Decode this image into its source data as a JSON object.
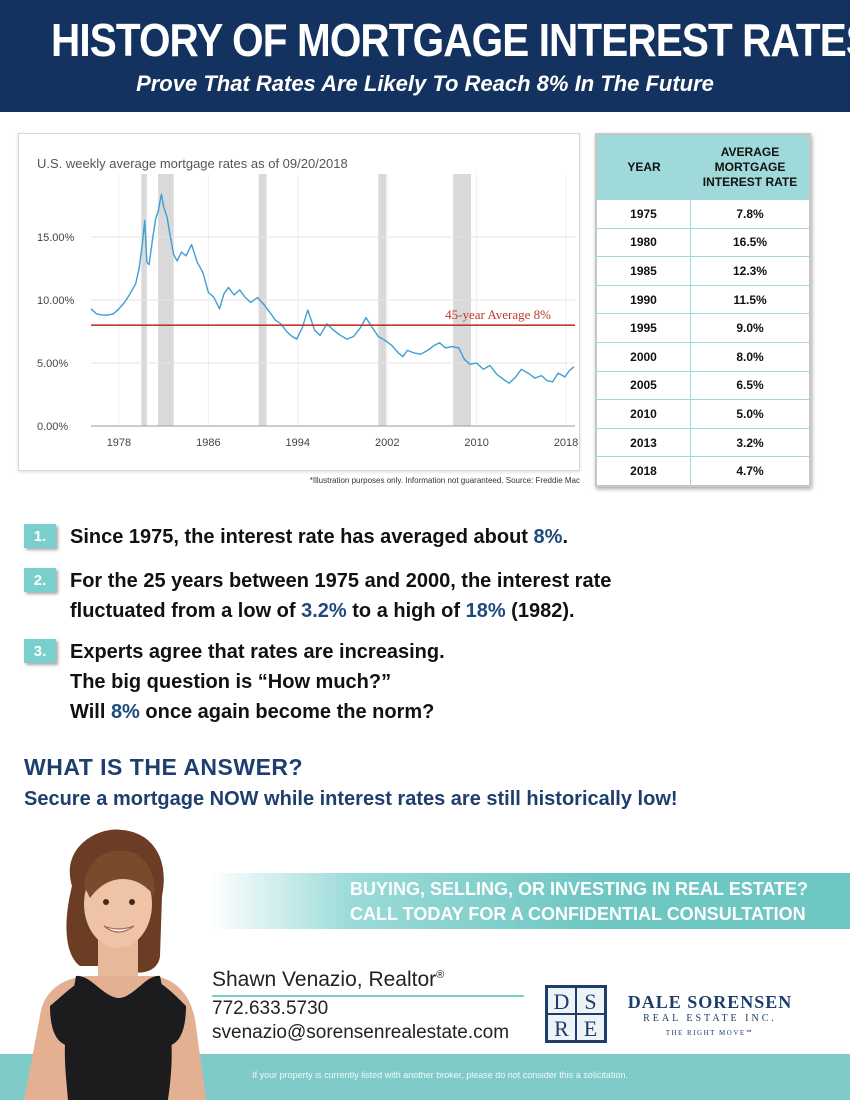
{
  "header": {
    "title": "HISTORY OF MORTGAGE INTEREST RATES",
    "subtitle": "Prove That Rates Are Likely To Reach 8% In The Future"
  },
  "chart_caption": "U.S. weekly average mortgage rates as of 09/20/2018",
  "chart_note": "*Illustration purposes only.  Information not guaranteed. Source: Freddie Mac",
  "chart_data": {
    "type": "line",
    "title": "U.S. weekly average mortgage rates as of 09/20/2018",
    "xlabel": "",
    "ylabel": "",
    "xlim": [
      1975.5,
      2018.8
    ],
    "ylim": [
      0,
      20
    ],
    "x_ticks": [
      "1978",
      "1986",
      "1994",
      "2002",
      "2010",
      "2018"
    ],
    "y_ticks": [
      "0.00%",
      "5.00%",
      "10.00%",
      "15.00%"
    ],
    "grid": true,
    "line_color": "#3d9fd3",
    "recession_bands": [
      [
        1980.0,
        1980.5
      ],
      [
        1981.5,
        1982.9
      ],
      [
        1990.5,
        1991.2
      ],
      [
        2001.2,
        2001.9
      ],
      [
        2007.9,
        2009.5
      ]
    ],
    "series": [
      {
        "x": [
          1975.5,
          1976.0,
          1976.5,
          1977.0,
          1977.5,
          1978.0,
          1978.5,
          1979.0,
          1979.5,
          1979.8,
          1980.1,
          1980.3,
          1980.5,
          1980.7,
          1981.0,
          1981.3,
          1981.5,
          1981.8,
          1982.0,
          1982.3,
          1982.6,
          1982.9,
          1983.2,
          1983.6,
          1984.0,
          1984.5,
          1985.0,
          1985.5,
          1986.0,
          1986.5,
          1987.0,
          1987.4,
          1987.8,
          1988.3,
          1988.8,
          1989.3,
          1989.8,
          1990.4,
          1991.0,
          1991.6,
          1992.0,
          1992.5,
          1993.0,
          1993.5,
          1993.9,
          1994.4,
          1994.9,
          1995.5,
          1996.0,
          1996.6,
          1997.2,
          1997.8,
          1998.4,
          1999.0,
          1999.6,
          2000.1,
          2000.6,
          2001.2,
          2001.8,
          2002.4,
          2003.0,
          2003.4,
          2003.8,
          2004.4,
          2005.0,
          2005.6,
          2006.2,
          2006.7,
          2007.2,
          2007.8,
          2008.4,
          2008.9,
          2009.4,
          2010.0,
          2010.6,
          2011.2,
          2011.8,
          2012.4,
          2012.9,
          2013.5,
          2014.0,
          2014.6,
          2015.2,
          2015.8,
          2016.3,
          2016.8,
          2017.3,
          2017.9,
          2018.3,
          2018.7
        ],
        "y": [
          9.3,
          8.9,
          8.8,
          8.8,
          8.9,
          9.3,
          9.8,
          10.5,
          11.3,
          12.5,
          14.5,
          16.3,
          13.0,
          12.8,
          14.8,
          16.5,
          17.0,
          18.4,
          17.4,
          16.6,
          15.0,
          13.6,
          13.1,
          13.8,
          13.5,
          14.4,
          13.0,
          12.2,
          10.6,
          10.2,
          9.3,
          10.5,
          11.0,
          10.4,
          10.8,
          10.2,
          9.8,
          10.2,
          9.6,
          8.9,
          8.4,
          8.1,
          7.5,
          7.1,
          6.9,
          7.8,
          9.2,
          7.6,
          7.2,
          8.1,
          7.6,
          7.2,
          6.9,
          7.1,
          7.8,
          8.6,
          7.9,
          7.1,
          6.8,
          6.4,
          5.8,
          5.5,
          6.0,
          5.8,
          5.7,
          6.0,
          6.4,
          6.6,
          6.2,
          6.3,
          6.2,
          5.3,
          4.9,
          5.0,
          4.5,
          4.8,
          4.1,
          3.7,
          3.4,
          3.9,
          4.5,
          4.2,
          3.8,
          4.0,
          3.6,
          3.5,
          4.2,
          3.9,
          4.4,
          4.7
        ]
      }
    ],
    "annotations": [
      {
        "type": "hline",
        "y": 8,
        "color": "#c0392b",
        "label": "45-year Average 8%"
      }
    ]
  },
  "table": {
    "header_year": "YEAR",
    "header_rate": "AVERAGE MORTGAGE INTEREST RATE",
    "rows": [
      {
        "year": "1975",
        "rate": "7.8%"
      },
      {
        "year": "1980",
        "rate": "16.5%"
      },
      {
        "year": "1985",
        "rate": "12.3%"
      },
      {
        "year": "1990",
        "rate": "11.5%"
      },
      {
        "year": "1995",
        "rate": "9.0%"
      },
      {
        "year": "2000",
        "rate": "8.0%"
      },
      {
        "year": "2005",
        "rate": "6.5%"
      },
      {
        "year": "2010",
        "rate": "5.0%"
      },
      {
        "year": "2013",
        "rate": "3.2%"
      },
      {
        "year": "2018",
        "rate": "4.7%"
      }
    ]
  },
  "points": [
    {
      "num": "1.",
      "lines": [
        [
          "Since 1975, the interest rate has averaged about ",
          {
            "hl": "8%"
          },
          "."
        ]
      ]
    },
    {
      "num": "2.",
      "lines": [
        [
          "For the 25 years between 1975 and 2000, the interest rate"
        ],
        [
          "fluctuated from a low of ",
          {
            "hl": "3.2%"
          },
          " to a high of ",
          {
            "hl": "18%"
          },
          " (1982)."
        ]
      ]
    },
    {
      "num": "3.",
      "lines": [
        [
          "Experts agree that rates are increasing."
        ],
        [
          "The big question is “How much?”"
        ],
        [
          "Will ",
          {
            "hl": "8%"
          },
          " once again become the norm?"
        ]
      ]
    }
  ],
  "answer": {
    "title": "WHAT IS THE ANSWER?",
    "text": "Secure a mortgage NOW while interest rates are still historically low!"
  },
  "cta": {
    "line1": "BUYING, SELLING, OR INVESTING IN REAL ESTATE?",
    "line2": "CALL TODAY FOR A CONFIDENTIAL CONSULTATION"
  },
  "agent": {
    "name": "Shawn Venazio, Realtor",
    "mark": "®",
    "phone": "772.633.5730",
    "email": "svenazio@sorensenrealestate.com"
  },
  "brand": {
    "logo_letters": [
      "D",
      "S",
      "R",
      "E"
    ],
    "name": "DALE SORENSEN",
    "sub": "REAL ESTATE INC.",
    "tagline": "THE RIGHT MOVE℠"
  },
  "disclaimer": "If your property is currently listed with another broker, please do not consider this a solicitation.",
  "colors": {
    "navy": "#14325f",
    "teal": "#79cfcc",
    "line": "#3d9fd3",
    "average_line": "#c0392b"
  }
}
